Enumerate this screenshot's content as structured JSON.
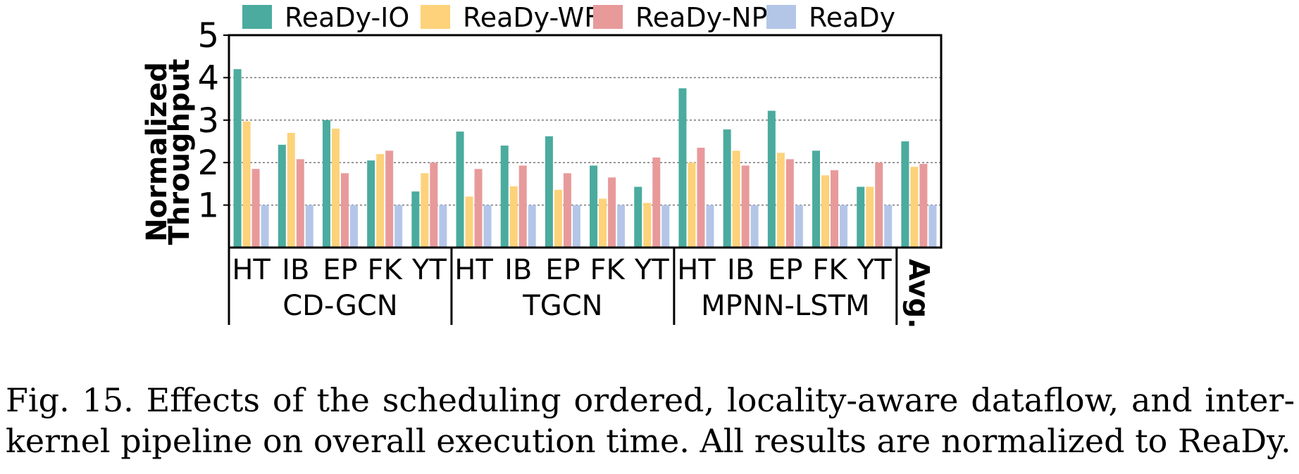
{
  "chart_data": {
    "type": "bar",
    "ylabel": "Normalized Throughput",
    "ylim": [
      0,
      5
    ],
    "yticks": [
      1,
      2,
      3,
      4,
      5
    ],
    "grid": true,
    "legend_position": "top",
    "series": [
      {
        "name": "ReaDy-IO",
        "color": "#4aab9e",
        "values": [
          4.2,
          2.42,
          3.0,
          2.05,
          1.32,
          2.73,
          2.4,
          2.62,
          1.93,
          1.43,
          3.75,
          2.78,
          3.22,
          2.28,
          1.43,
          2.5
        ]
      },
      {
        "name": "ReaDy-WF",
        "color": "#fdd27a",
        "values": [
          2.97,
          2.7,
          2.8,
          2.2,
          1.75,
          1.2,
          1.44,
          1.36,
          1.15,
          1.05,
          2.0,
          2.28,
          2.23,
          1.7,
          1.43,
          1.9
        ]
      },
      {
        "name": "ReaDy-NP",
        "color": "#e89a9b",
        "values": [
          1.85,
          2.08,
          1.75,
          2.28,
          2.0,
          1.85,
          1.93,
          1.75,
          1.65,
          2.12,
          2.35,
          1.93,
          2.08,
          1.82,
          2.0,
          1.97
        ]
      },
      {
        "name": "ReaDy",
        "color": "#b4c6e8",
        "values": [
          1,
          1,
          1,
          1,
          1,
          1,
          1,
          1,
          1,
          1,
          1,
          1,
          1,
          1,
          1,
          1
        ]
      }
    ],
    "categories": [
      "HT",
      "IB",
      "EP",
      "FK",
      "YT",
      "HT",
      "IB",
      "EP",
      "FK",
      "YT",
      "HT",
      "IB",
      "EP",
      "FK",
      "YT",
      "Avg."
    ],
    "groups": [
      {
        "label": "CD-GCN",
        "start": 0,
        "count": 5
      },
      {
        "label": "TGCN",
        "start": 5,
        "count": 5
      },
      {
        "label": "MPNN-LSTM",
        "start": 10,
        "count": 5
      }
    ]
  },
  "caption": "Fig. 15.  Effects of the scheduling ordered, locality-aware dataflow, and inter-kernel pipeline on overall execution time. All results are normalized to ReaDy."
}
